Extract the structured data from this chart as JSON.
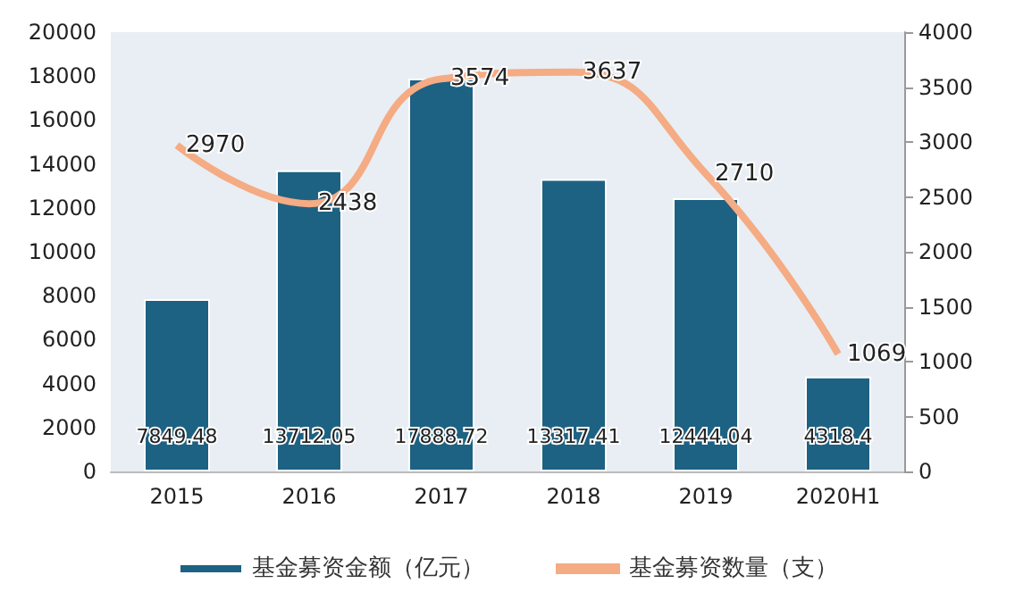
{
  "chart_data": {
    "type": "bar",
    "categories": [
      "2015",
      "2016",
      "2017",
      "2018",
      "2019",
      "2020H1"
    ],
    "series": [
      {
        "name": "基金募资金额（亿元）",
        "color": "#1d6283",
        "values": [
          7849.48,
          13712.05,
          17888.72,
          13317.41,
          12444.04,
          4318.4
        ]
      },
      {
        "name": "基金募资数量（支）",
        "type": "line",
        "axis": "y2",
        "color": "#f5ab83",
        "values": [
          2970,
          2438,
          3574,
          3637,
          2710,
          1069
        ]
      }
    ],
    "ylim": [
      0,
      20000
    ],
    "yticks": [
      0,
      2000,
      4000,
      6000,
      8000,
      10000,
      12000,
      14000,
      16000,
      18000,
      20000
    ],
    "y2lim": [
      0,
      4000
    ],
    "y2ticks": [
      0,
      500,
      1000,
      1500,
      2000,
      2500,
      3000,
      3500,
      4000
    ],
    "data_labels": true,
    "legend": "bottom",
    "grid": false,
    "marker": "none",
    "line_style": "solid"
  }
}
